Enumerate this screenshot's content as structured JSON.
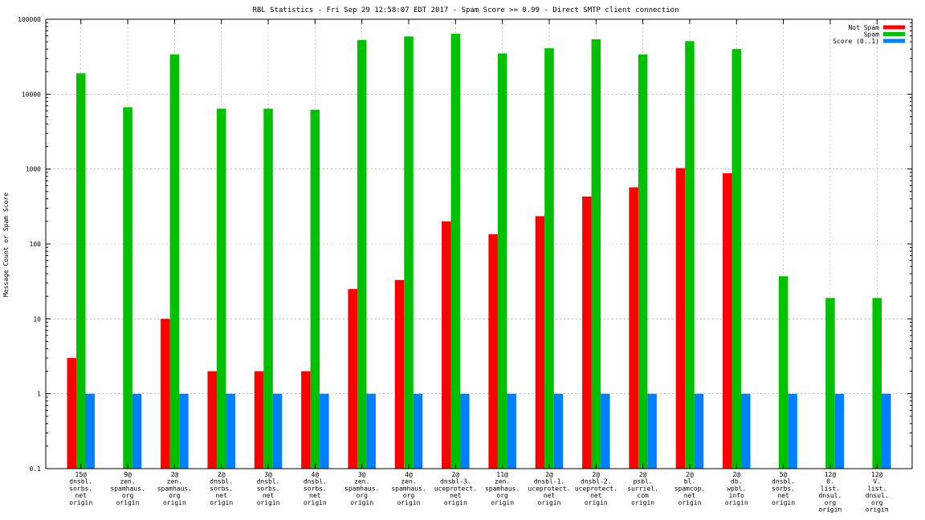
{
  "chart_data": {
    "type": "bar",
    "title": "RBL Statistics - Fri Sep 29 12:58:07 EDT 2017 - Spam Score >= 0.99 - Direct SMTP client connection",
    "ylabel": "Message Count or Spam Score",
    "xlabel": "",
    "yscale": "log",
    "ylim": [
      0.1,
      100000
    ],
    "yticks": [
      "0.1",
      "1",
      "10",
      "100",
      "1000",
      "10000",
      "100000"
    ],
    "grid": true,
    "legend_position": "top-right",
    "categories": [
      [
        "15@",
        "dnsbl.",
        "sorbs.",
        "net",
        "origin"
      ],
      [
        "9@",
        "zen.",
        "spamhaus.",
        "org",
        "origin"
      ],
      [
        "2@",
        "zen.",
        "spamhaus.",
        "org",
        "origin"
      ],
      [
        "2@",
        "dnsbl.",
        "sorbs.",
        "net",
        "origin"
      ],
      [
        "3@",
        "dnsbl.",
        "sorbs.",
        "net",
        "origin"
      ],
      [
        "4@",
        "dnsbl.",
        "sorbs.",
        "net",
        "origin"
      ],
      [
        "3@",
        "zen.",
        "spamhaus.",
        "org",
        "origin"
      ],
      [
        "4@",
        "zen.",
        "spamhaus.",
        "org",
        "origin"
      ],
      [
        "2@",
        "dnsbl-3.",
        "uceprotect.",
        "net",
        "origin"
      ],
      [
        "11@",
        "zen.",
        "spamhaus.",
        "org",
        "origin"
      ],
      [
        "2@",
        "dnsbl-1.",
        "uceprotect.",
        "net",
        "origin"
      ],
      [
        "2@",
        "dnsbl-2.",
        "uceprotect.",
        "net",
        "origin"
      ],
      [
        "2@",
        "psbl.",
        "surriel.",
        "com",
        "origin"
      ],
      [
        "2@",
        "bl.",
        "spamcop.",
        "net",
        "origin"
      ],
      [
        "2@",
        "db.",
        "wpbl.",
        "info",
        "origin"
      ],
      [
        "5@",
        "dnsbl.",
        "sorbs.",
        "net",
        "origin"
      ],
      [
        "12@",
        "0.",
        "list.",
        "dnsul.",
        "org",
        "origin"
      ],
      [
        "12@",
        "V.",
        "list.",
        "dnsul.",
        "org",
        "origin"
      ]
    ],
    "series": [
      {
        "name": "Not Spam",
        "color": "#ff0000",
        "values": [
          3,
          null,
          10,
          2,
          2,
          2,
          25,
          33,
          200,
          135,
          235,
          430,
          570,
          1030,
          880,
          null,
          null,
          null
        ]
      },
      {
        "name": "Spam",
        "color": "#00c000",
        "values": [
          19000,
          6700,
          34000,
          6400,
          6400,
          6200,
          53000,
          59000,
          64000,
          35000,
          41000,
          54000,
          34000,
          51000,
          40000,
          37,
          19,
          19
        ]
      },
      {
        "name": "Score (0..1)",
        "color": "#0080ff",
        "values": [
          1,
          1,
          1,
          1,
          1,
          1,
          1,
          1,
          1,
          1,
          1,
          1,
          1,
          1,
          1,
          1,
          1,
          1
        ]
      }
    ]
  }
}
